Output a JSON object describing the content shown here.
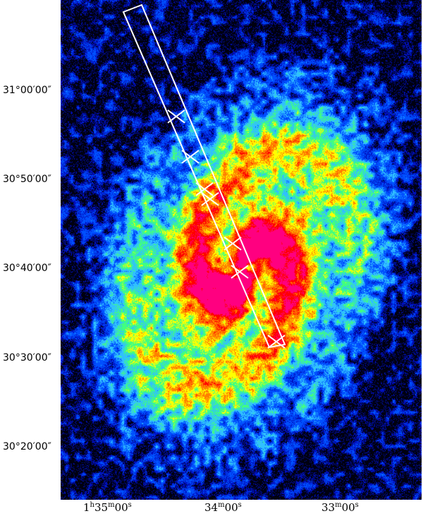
{
  "figure": {
    "y_ticks": [
      "31°00′00″",
      "30°50′00″",
      "30°40′00″",
      "30°30′00″",
      "30°20′00″"
    ],
    "x_ticks": [
      {
        "h": "1",
        "h_unit": "h",
        "m": "35",
        "m_unit": "m",
        "s": "00",
        "s_unit": "s"
      },
      {
        "h": "",
        "h_unit": "",
        "m": "34",
        "m_unit": "m",
        "s": "00",
        "s_unit": "s"
      },
      {
        "h": "",
        "h_unit": "",
        "m": "33",
        "m_unit": "m",
        "s": "00",
        "s_unit": "s"
      }
    ],
    "colormap": [
      "#000010",
      "#0010c0",
      "#0050ff",
      "#30c0ff",
      "#40ff80",
      "#ffff00",
      "#ff8000",
      "#ff0000",
      "#ff0080",
      "#ffffff"
    ],
    "overlay_color": "#ffffff",
    "overlay": "slit rectangle with cross markers"
  }
}
